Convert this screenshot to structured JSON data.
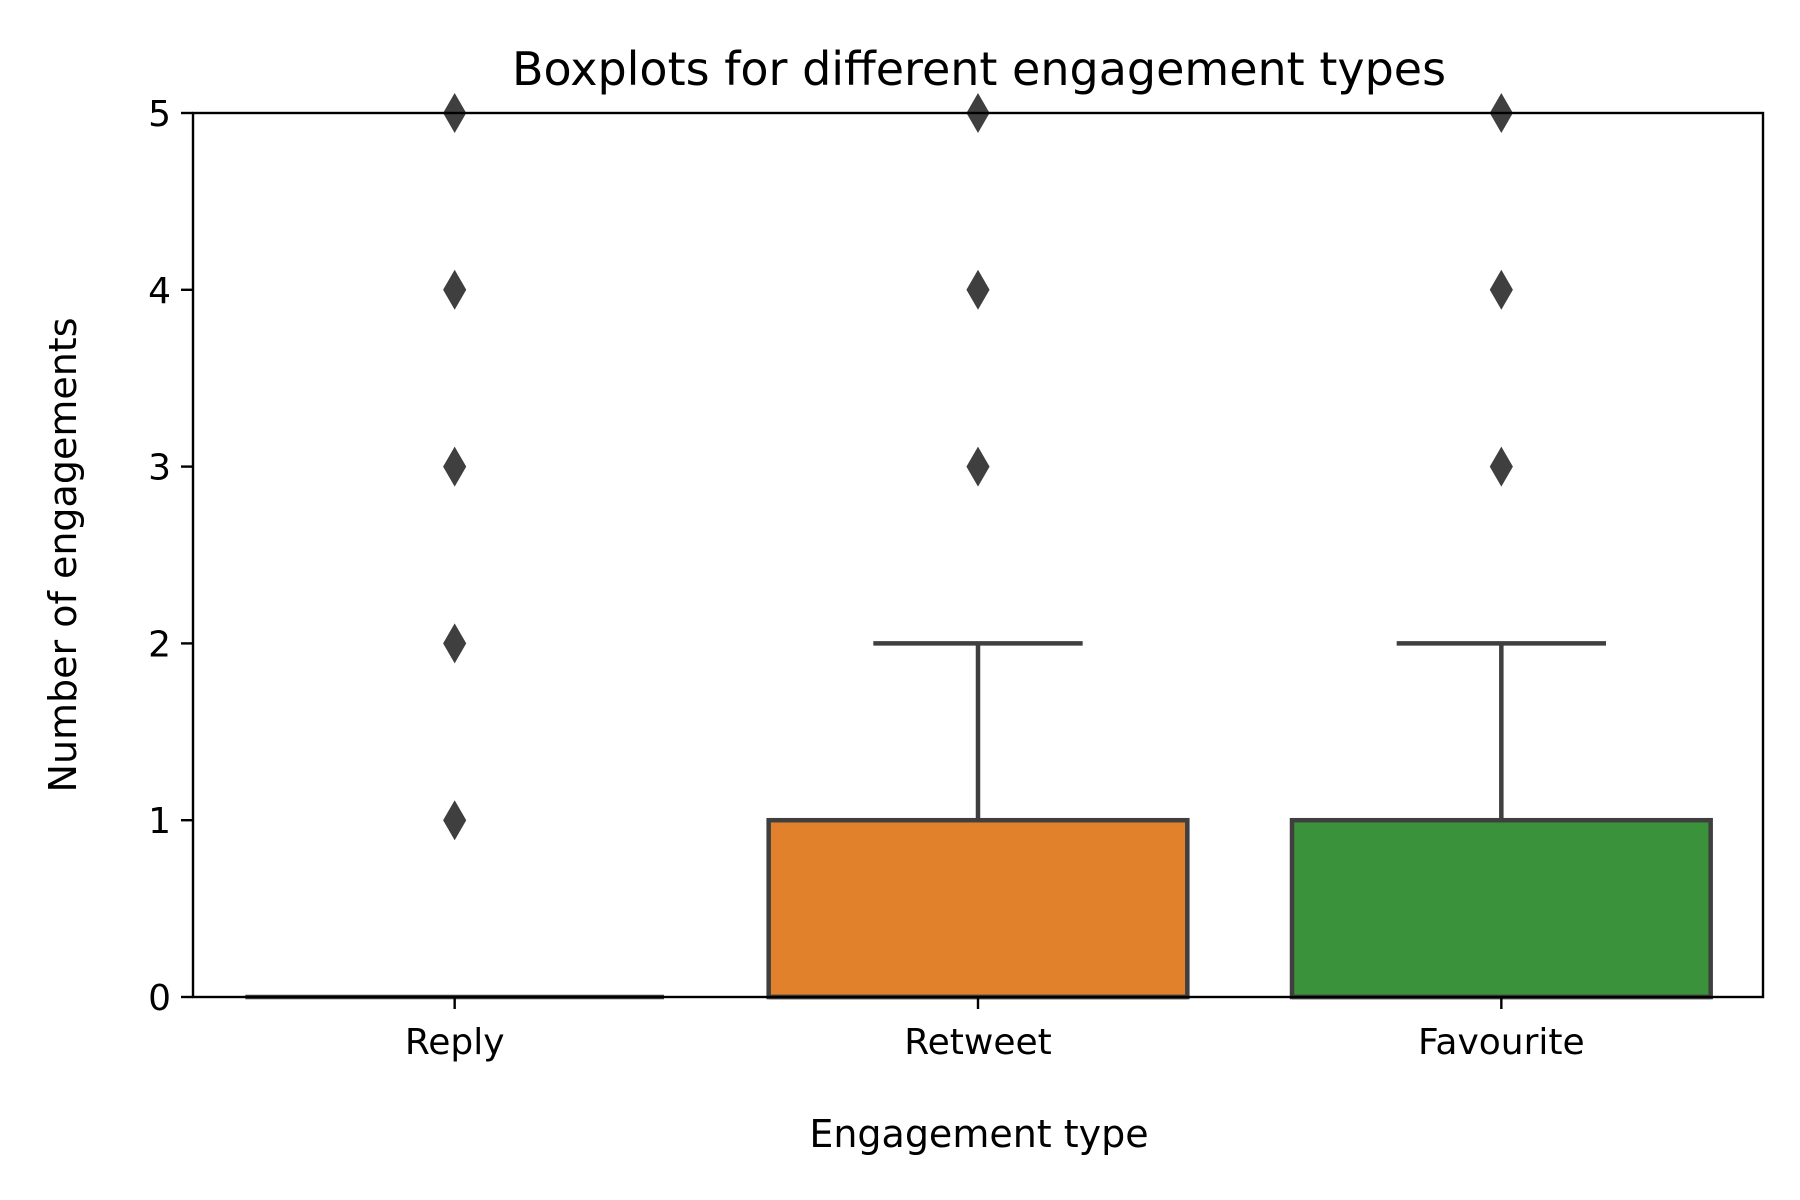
{
  "chart_data": {
    "type": "box",
    "title": "Boxplots for different engagement types",
    "xlabel": "Engagement type",
    "ylabel": "Number of engagements",
    "ylim": [
      0,
      5
    ],
    "yticks": [
      "0",
      "1",
      "2",
      "3",
      "4",
      "5"
    ],
    "grid": false,
    "categories": [
      "Reply",
      "Retweet",
      "Favourite"
    ],
    "boxes": [
      {
        "category": "Reply",
        "color": "#1f77b4",
        "whislo": 0,
        "q1": 0,
        "med": 0,
        "q3": 0,
        "whishi": 0,
        "fliers": [
          1,
          2,
          3,
          4,
          5
        ]
      },
      {
        "category": "Retweet",
        "color": "#e1812c",
        "whislo": 0,
        "q1": 0,
        "med": 0,
        "q3": 1,
        "whishi": 2,
        "fliers": [
          3,
          4,
          5
        ]
      },
      {
        "category": "Favourite",
        "color": "#3a923a",
        "whislo": 0,
        "q1": 0,
        "med": 0,
        "q3": 1,
        "whishi": 2,
        "fliers": [
          3,
          4,
          5
        ]
      }
    ],
    "line_color": "#3f3f3f"
  }
}
